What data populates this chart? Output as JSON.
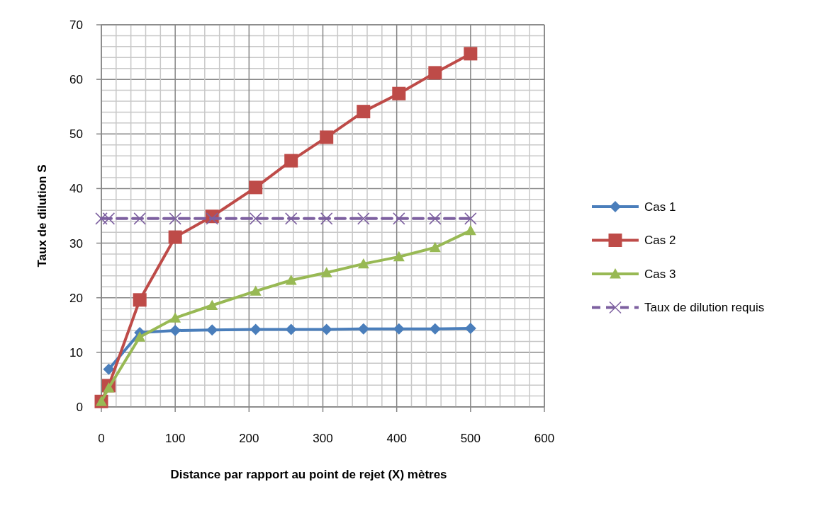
{
  "chart_data": {
    "type": "line",
    "xlabel": "Distance par rapport au point de rejet (X) mètres",
    "ylabel": "Taux de dilution S",
    "x": [
      0,
      10,
      52,
      100,
      150,
      209,
      257,
      305,
      355,
      403,
      452,
      500
    ],
    "series": [
      {
        "name": "Cas 1",
        "color": "#4a7ebb",
        "marker": "diamond",
        "values": [
          null,
          6.9,
          13.6,
          14.0,
          14.1,
          14.2,
          14.2,
          14.2,
          14.3,
          14.3,
          14.3,
          14.4
        ]
      },
      {
        "name": "Cas 2",
        "color": "#be4b48",
        "marker": "square",
        "values": [
          1,
          3.9,
          19.6,
          31.1,
          34.9,
          40.2,
          45.1,
          49.4,
          54.1,
          57.4,
          61.2,
          64.7
        ]
      },
      {
        "name": "Cas 3",
        "color": "#98b954",
        "marker": "triangle",
        "values": [
          1,
          3.5,
          12.8,
          16.3,
          18.6,
          21.2,
          23.2,
          24.6,
          26.2,
          27.5,
          29.2,
          32.3
        ]
      },
      {
        "name": "Taux de dilution requis",
        "color": "#7d60a0",
        "marker": "cross",
        "line_style": "dashed",
        "values": [
          34.5,
          34.5,
          34.5,
          34.5,
          34.5,
          34.5,
          34.5,
          34.5,
          34.5,
          34.5,
          34.5,
          34.5
        ]
      }
    ],
    "xlim": [
      0,
      600
    ],
    "xticks": [
      0,
      {
        "value": 20,
        "label": null
      },
      {
        "value": 40,
        "label": null
      },
      {
        "value": 60,
        "label": null
      },
      {
        "value": 80,
        "label": null
      },
      100,
      {
        "value": 120,
        "label": null
      },
      {
        "value": 140,
        "label": null
      },
      {
        "value": 160,
        "label": null
      },
      {
        "value": 180,
        "label": null
      },
      200,
      {
        "value": 220,
        "label": null
      },
      {
        "value": 240,
        "label": null
      },
      {
        "value": 260,
        "label": null
      },
      {
        "value": 280,
        "label": null
      },
      300,
      {
        "value": 320,
        "label": null
      },
      {
        "value": 340,
        "label": null
      },
      {
        "value": 360,
        "label": null
      },
      {
        "value": 380,
        "label": null
      },
      400,
      {
        "value": 420,
        "label": null
      },
      {
        "value": 440,
        "label": null
      },
      {
        "value": 460,
        "label": null
      },
      {
        "value": 480,
        "label": null
      },
      500,
      {
        "value": 520,
        "label": null
      },
      {
        "value": 540,
        "label": null
      },
      {
        "value": 560,
        "label": null
      },
      {
        "value": 580,
        "label": null
      },
      600
    ],
    "ylim": [
      0,
      70
    ],
    "yticks": [
      0,
      {
        "value": 2,
        "label": null
      },
      {
        "value": 4,
        "label": null
      },
      {
        "value": 6,
        "label": null
      },
      {
        "value": 8,
        "label": null
      },
      10,
      {
        "value": 12,
        "label": null
      },
      {
        "value": 14,
        "label": null
      },
      {
        "value": 16,
        "label": null
      },
      {
        "value": 18,
        "label": null
      },
      20,
      {
        "value": 22,
        "label": null
      },
      {
        "value": 24,
        "label": null
      },
      {
        "value": 26,
        "label": null
      },
      {
        "value": 28,
        "label": null
      },
      30,
      {
        "value": 32,
        "label": null
      },
      {
        "value": 34,
        "label": null
      },
      {
        "value": 36,
        "label": null
      },
      {
        "value": 38,
        "label": null
      },
      40,
      {
        "value": 42,
        "label": null
      },
      {
        "value": 44,
        "label": null
      },
      {
        "value": 46,
        "label": null
      },
      {
        "value": 48,
        "label": null
      },
      50,
      {
        "value": 52,
        "label": null
      },
      {
        "value": 54,
        "label": null
      },
      {
        "value": 56,
        "label": null
      },
      {
        "value": 58,
        "label": null
      },
      60,
      {
        "value": 62,
        "label": null
      },
      {
        "value": 64,
        "label": null
      },
      {
        "value": 66,
        "label": null
      },
      {
        "value": 68,
        "label": null
      },
      70
    ],
    "grid": true,
    "legend": "right"
  }
}
